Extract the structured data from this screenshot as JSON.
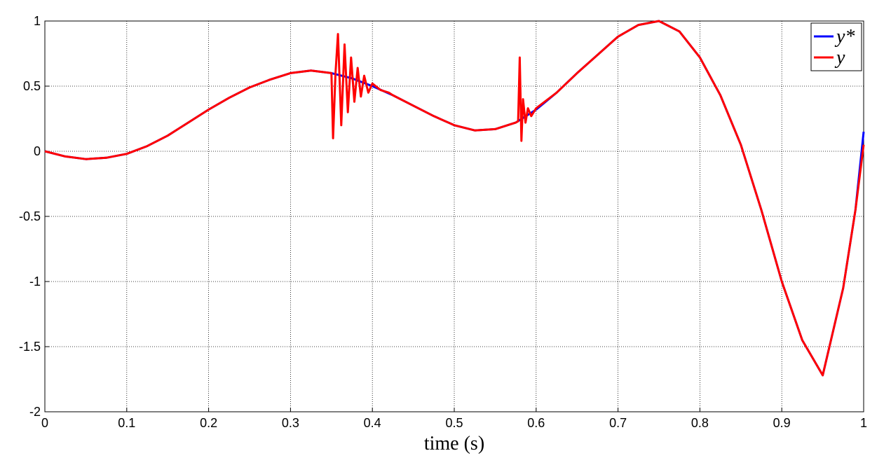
{
  "chart_data": {
    "type": "line",
    "xlabel": "time (s)",
    "xlim": [
      0,
      1
    ],
    "ylim": [
      -2,
      1
    ],
    "xticks": [
      0,
      0.1,
      0.2,
      0.3,
      0.4,
      0.5,
      0.6,
      0.7,
      0.8,
      0.9,
      1
    ],
    "yticks": [
      -2,
      -1.5,
      -1,
      -0.5,
      0,
      0.5,
      1
    ],
    "grid": true,
    "legend": "upper right",
    "series": [
      {
        "name": "y*",
        "color": "#0000ff",
        "x": [
          0,
          0.025,
          0.05,
          0.075,
          0.1,
          0.125,
          0.15,
          0.175,
          0.2,
          0.225,
          0.25,
          0.275,
          0.3,
          0.325,
          0.35,
          0.375,
          0.4,
          0.425,
          0.45,
          0.475,
          0.5,
          0.525,
          0.55,
          0.575,
          0.6,
          0.625,
          0.65,
          0.675,
          0.7,
          0.725,
          0.75,
          0.775,
          0.8,
          0.825,
          0.85,
          0.875,
          0.9,
          0.925,
          0.95,
          0.975,
          0.99,
          1
        ],
        "values": [
          0,
          -0.04,
          -0.06,
          -0.05,
          -0.02,
          0.04,
          0.12,
          0.22,
          0.32,
          0.41,
          0.49,
          0.55,
          0.6,
          0.62,
          0.6,
          0.56,
          0.5,
          0.43,
          0.35,
          0.27,
          0.2,
          0.16,
          0.17,
          0.22,
          0.32,
          0.45,
          0.6,
          0.74,
          0.88,
          0.97,
          1.0,
          0.92,
          0.72,
          0.43,
          0.05,
          -0.45,
          -1.0,
          -1.45,
          -1.72,
          -1.05,
          -0.45,
          0.15
        ]
      },
      {
        "name": "y",
        "color": "#ff0000",
        "x": [
          0,
          0.025,
          0.05,
          0.075,
          0.1,
          0.125,
          0.15,
          0.175,
          0.2,
          0.225,
          0.25,
          0.275,
          0.3,
          0.325,
          0.35,
          0.352,
          0.355,
          0.358,
          0.362,
          0.366,
          0.37,
          0.374,
          0.378,
          0.382,
          0.386,
          0.39,
          0.395,
          0.4,
          0.41,
          0.42,
          0.425,
          0.45,
          0.475,
          0.5,
          0.525,
          0.55,
          0.575,
          0.578,
          0.58,
          0.582,
          0.584,
          0.587,
          0.59,
          0.594,
          0.6,
          0.625,
          0.65,
          0.675,
          0.7,
          0.725,
          0.75,
          0.775,
          0.8,
          0.825,
          0.85,
          0.875,
          0.9,
          0.925,
          0.95,
          0.975,
          0.99,
          1
        ],
        "values": [
          0,
          -0.04,
          -0.06,
          -0.05,
          -0.02,
          0.04,
          0.12,
          0.22,
          0.32,
          0.41,
          0.49,
          0.55,
          0.6,
          0.62,
          0.6,
          0.1,
          0.6,
          0.9,
          0.2,
          0.82,
          0.3,
          0.72,
          0.38,
          0.64,
          0.42,
          0.58,
          0.45,
          0.52,
          0.47,
          0.45,
          0.43,
          0.35,
          0.27,
          0.2,
          0.16,
          0.17,
          0.22,
          0.23,
          0.72,
          0.08,
          0.4,
          0.22,
          0.33,
          0.27,
          0.33,
          0.45,
          0.6,
          0.74,
          0.88,
          0.97,
          1.0,
          0.92,
          0.72,
          0.43,
          0.05,
          -0.45,
          -1.0,
          -1.45,
          -1.72,
          -1.05,
          -0.45,
          0.05
        ]
      }
    ]
  }
}
